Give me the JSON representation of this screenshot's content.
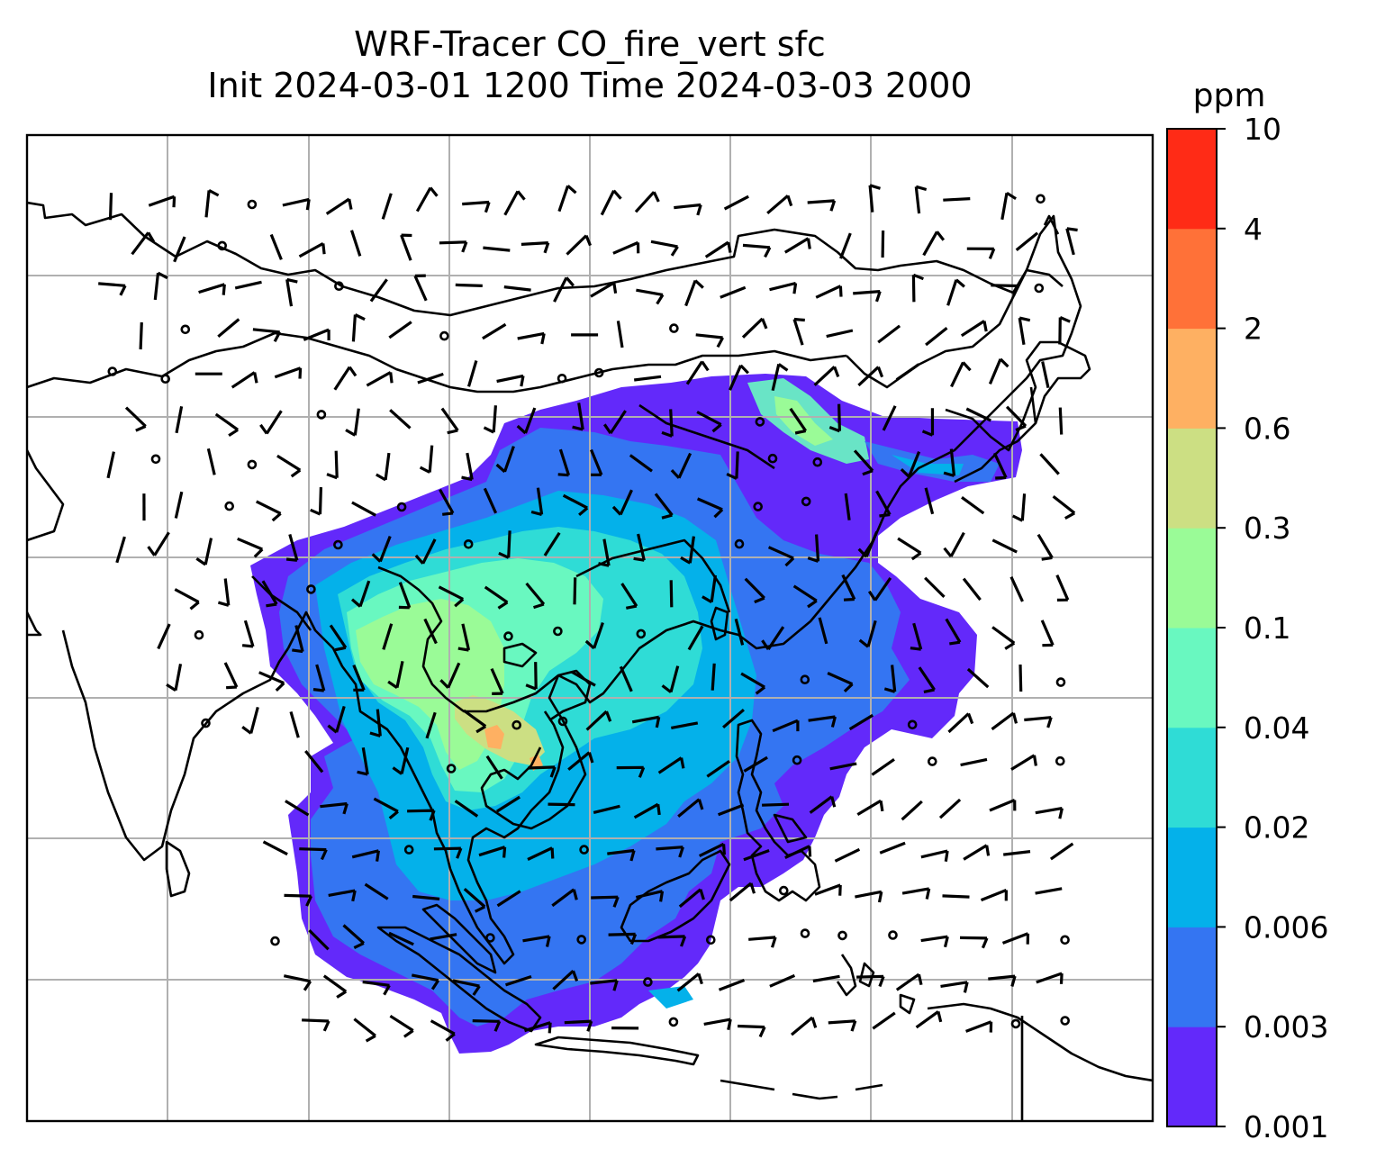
{
  "title": {
    "line1": "WRF-Tracer CO_fire_vert sfc",
    "line2": "Init 2024-03-01 1200 Time 2024-03-03 2000"
  },
  "colorbar": {
    "unit": "ppm",
    "levels": [
      "0.001",
      "0.003",
      "0.006",
      "0.02",
      "0.04",
      "0.1",
      "0.3",
      "0.6",
      "2",
      "4",
      "10"
    ],
    "colors": [
      "#6329fa",
      "#3475f2",
      "#04b1ea",
      "#2fdcd6",
      "#69f8c0",
      "#9afb97",
      "#ccdf83",
      "#feb062",
      "#ff7138",
      "#ff2b16"
    ]
  },
  "map": {
    "variable": "CO_fire_vert",
    "level": "sfc",
    "overlay": "wind barbs",
    "gridlines": true,
    "colors": {
      "coastline": "#000000",
      "grid": "#b0b0b0",
      "barb": "#000000"
    }
  }
}
